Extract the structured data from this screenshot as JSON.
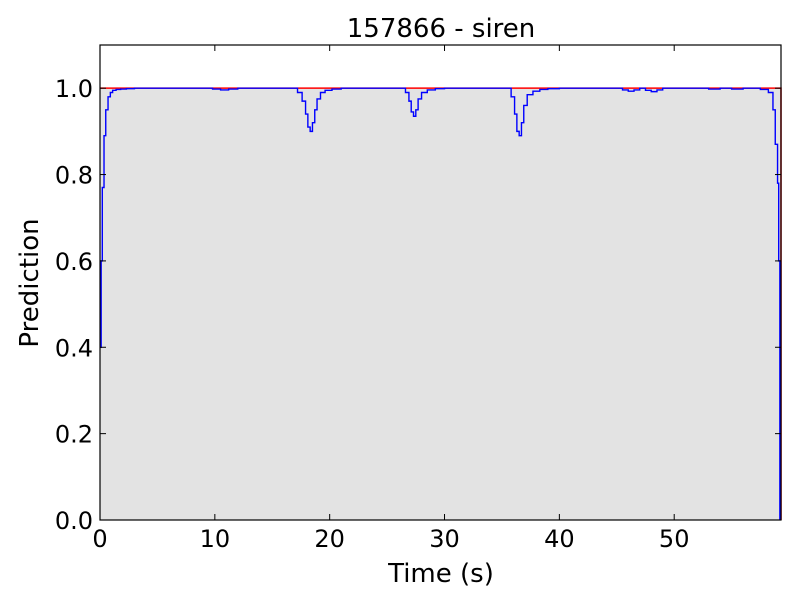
{
  "chart_data": {
    "type": "line",
    "title": "157866 - siren",
    "xlabel": "Time (s)",
    "ylabel": "Prediction",
    "xlim": [
      0,
      59.3
    ],
    "ylim": [
      0,
      1.1
    ],
    "x_ticks": [
      0,
      10,
      20,
      30,
      40,
      50
    ],
    "x_tick_labels": [
      "0",
      "10",
      "20",
      "30",
      "40",
      "50"
    ],
    "y_ticks": [
      0.0,
      0.2,
      0.4,
      0.6,
      0.8,
      1.0
    ],
    "y_tick_labels": [
      "0.0",
      "0.2",
      "0.4",
      "0.6",
      "0.8",
      "1.0"
    ],
    "grid": false,
    "colors": {
      "prediction": "#0000ff",
      "ground_truth": "#ff0000",
      "fill": "#e3e3e3",
      "axes": "#000000"
    },
    "series": [
      {
        "key": "prediction",
        "style": "steps",
        "x": [
          0,
          0.1,
          0.2,
          0.35,
          0.5,
          0.7,
          0.9,
          1.1,
          1.4,
          1.8,
          2.3,
          3.0,
          9.0,
          9.8,
          10.5,
          11.2,
          12.0,
          16.5,
          17.2,
          17.6,
          17.9,
          18.1,
          18.3,
          18.5,
          18.7,
          18.9,
          19.2,
          19.6,
          20.2,
          21.0,
          26.0,
          26.6,
          26.9,
          27.1,
          27.3,
          27.5,
          27.7,
          28.0,
          28.5,
          29.2,
          30.0,
          35.3,
          35.8,
          36.1,
          36.3,
          36.5,
          36.7,
          36.9,
          37.2,
          37.7,
          38.3,
          39.0,
          40.0,
          45.0,
          45.5,
          46.0,
          46.5,
          47.0,
          47.5,
          48.0,
          48.5,
          49.0,
          52.0,
          53.0,
          54.0,
          55.0,
          56.0,
          57.5,
          58.2,
          58.6,
          58.8,
          59.0,
          59.1,
          59.2
        ],
        "y": [
          0.4,
          0.6,
          0.77,
          0.89,
          0.95,
          0.98,
          0.99,
          0.995,
          0.997,
          0.998,
          0.999,
          1.0,
          1.0,
          0.998,
          0.996,
          0.998,
          1.0,
          1.0,
          0.99,
          0.97,
          0.94,
          0.91,
          0.9,
          0.92,
          0.95,
          0.975,
          0.99,
          0.995,
          0.998,
          1.0,
          1.0,
          0.99,
          0.97,
          0.945,
          0.935,
          0.95,
          0.975,
          0.99,
          0.996,
          0.999,
          1.0,
          1.0,
          0.98,
          0.94,
          0.9,
          0.89,
          0.92,
          0.96,
          0.985,
          0.993,
          0.997,
          0.999,
          1.0,
          1.0,
          0.996,
          0.993,
          0.996,
          1.0,
          0.995,
          0.992,
          0.996,
          1.0,
          1.0,
          0.998,
          1.0,
          0.998,
          1.0,
          0.997,
          0.99,
          0.95,
          0.87,
          0.78,
          0.6,
          0.0
        ]
      },
      {
        "key": "ground_truth",
        "style": "steps",
        "x": [
          0,
          59.2,
          59.3
        ],
        "y": [
          1.0,
          1.0,
          0.0
        ]
      }
    ]
  }
}
